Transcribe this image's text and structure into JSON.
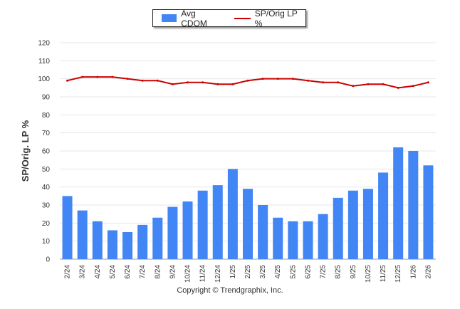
{
  "chart_data": {
    "type": "bar+line",
    "categories": [
      "2/24",
      "3/24",
      "4/24",
      "5/24",
      "6/24",
      "7/24",
      "8/24",
      "9/24",
      "10/24",
      "11/24",
      "12/24",
      "1/25",
      "2/25",
      "3/25",
      "4/25",
      "5/25",
      "6/25",
      "7/25",
      "8/25",
      "9/25",
      "10/25",
      "11/25",
      "12/25",
      "1/26",
      "2/26"
    ],
    "series": [
      {
        "name": "Avg CDOM",
        "type": "bar",
        "color": "#4285f4",
        "values": [
          35,
          27,
          21,
          16,
          15,
          19,
          23,
          29,
          32,
          38,
          41,
          50,
          39,
          30,
          23,
          21,
          21,
          25,
          34,
          38,
          39,
          48,
          62,
          60,
          52
        ]
      },
      {
        "name": "SP/Orig LP %",
        "type": "line",
        "color": "#cc0000",
        "values": [
          99,
          101,
          101,
          101,
          100,
          99,
          99,
          97,
          98,
          98,
          97,
          97,
          99,
          100,
          100,
          100,
          99,
          98,
          98,
          96,
          97,
          97,
          95,
          96,
          98
        ]
      }
    ],
    "ylabel": "SP/Orig. LP %",
    "ylim": [
      0,
      120
    ],
    "yticks": [
      "0",
      "10",
      "20",
      "30",
      "40",
      "50",
      "60",
      "70",
      "80",
      "90",
      "100",
      "110",
      "120"
    ],
    "legend": "top-center"
  },
  "footer": {
    "copyright": "Copyright © Trendgraphix, Inc."
  }
}
